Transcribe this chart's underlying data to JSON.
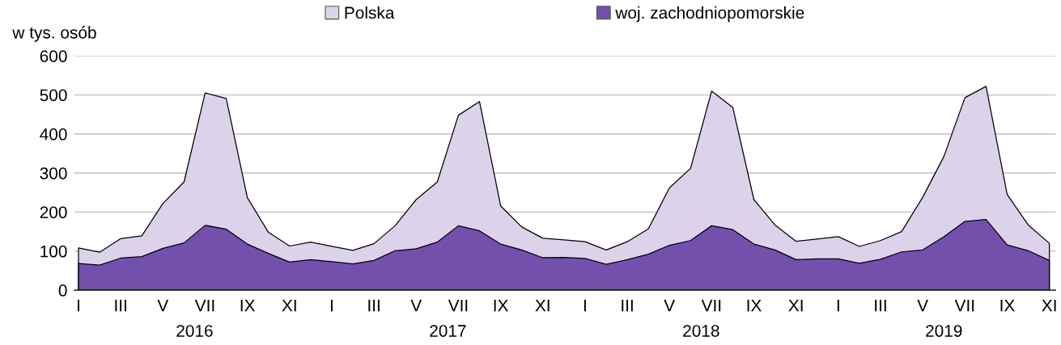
{
  "chart_data": {
    "type": "area",
    "ylabel": "w tys. osób",
    "categories": [
      "I",
      null,
      "III",
      null,
      "V",
      null,
      "VII",
      null,
      "IX",
      null,
      "XI",
      null,
      "I",
      null,
      "III",
      null,
      "V",
      null,
      "VII",
      null,
      "IX",
      null,
      "XI",
      null,
      "I",
      null,
      "III",
      null,
      "V",
      null,
      "VII",
      null,
      "IX",
      null,
      "XI",
      null,
      "I",
      null,
      "III",
      null,
      "V",
      null,
      "VII",
      null,
      "IX",
      null,
      "XI"
    ],
    "series": [
      {
        "name": "Polska",
        "color": "#dcd3ea",
        "values": [
          108,
          97,
          132,
          139,
          222,
          277,
          505,
          491,
          237,
          148,
          113,
          123,
          112,
          102,
          119,
          165,
          232,
          277,
          448,
          483,
          216,
          162,
          133,
          129,
          124,
          103,
          124,
          157,
          262,
          312,
          510,
          468,
          232,
          167,
          125,
          131,
          137,
          112,
          127,
          150,
          238,
          342,
          493,
          522,
          245,
          167,
          120
        ]
      },
      {
        "name": "woj. zachodniopomorskie",
        "color": "#7350ab",
        "values": [
          68,
          64,
          82,
          86,
          107,
          121,
          166,
          156,
          118,
          94,
          72,
          78,
          73,
          67,
          76,
          101,
          106,
          123,
          165,
          152,
          118,
          103,
          83,
          84,
          81,
          66,
          78,
          92,
          115,
          127,
          165,
          155,
          118,
          103,
          78,
          80,
          80,
          69,
          79,
          98,
          103,
          137,
          176,
          181,
          116,
          101,
          76
        ]
      }
    ],
    "annotations": [
      "2016",
      "2017",
      "2018",
      "2019"
    ],
    "ylim": [
      0,
      600
    ],
    "yticks": [
      0,
      100,
      200,
      300,
      400,
      500,
      600
    ],
    "grid": "y",
    "legend": "top"
  }
}
